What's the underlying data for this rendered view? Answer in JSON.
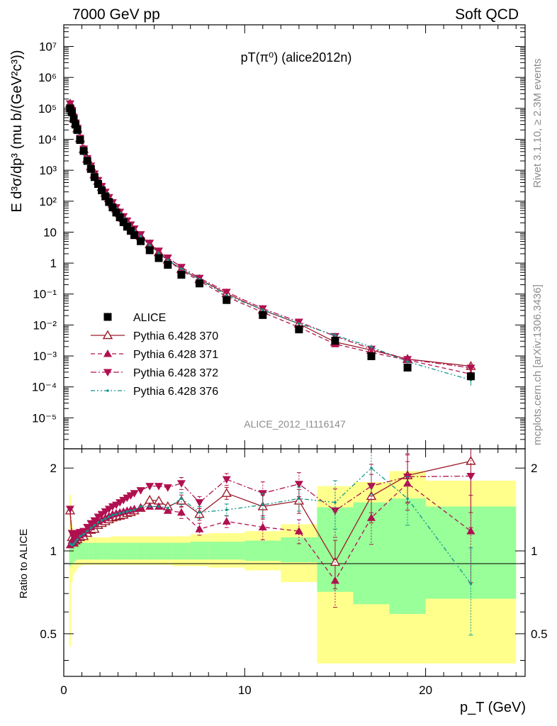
{
  "header": {
    "energy_label": "7000 GeV pp",
    "process_label": "Soft QCD",
    "plot_title": "pT(π⁰) (alice2012n)",
    "watermark": "ALICE_2012_I1116147",
    "rivet_label": "Rivet 3.1.10, ≥ 2.3M events",
    "mcplots_label": "mcplots.cern.ch [arXiv:1306.3436]"
  },
  "chart_data": {
    "type": "scatter",
    "xlabel": "p_T (GeV)",
    "ylabel_main": "E d³σ/dp³ (mu b/(GeV²c³))",
    "ylabel_ratio": "Ratio to ALICE",
    "xlim": [
      0,
      25.5
    ],
    "ylim_main": [
      1e-06,
      50000000.0
    ],
    "ylim_ratio": [
      0.35,
      2.35
    ],
    "log_y_main": true,
    "log_y_ratio": true,
    "x_ticks": [
      "0",
      "10",
      "20"
    ],
    "y_ticks_main": [
      "10⁻⁵",
      "10⁻⁴",
      "10⁻³",
      "10⁻²",
      "10⁻¹",
      "1",
      "10",
      "10²",
      "10³",
      "10⁴",
      "10⁵",
      "10⁶",
      "10⁷"
    ],
    "y_ticks_ratio": [
      "0.5",
      "1",
      "2"
    ],
    "legend_position": "bottom-left",
    "data": {
      "name": "ALICE",
      "x": [
        0.35,
        0.45,
        0.55,
        0.65,
        0.75,
        0.9,
        1.1,
        1.3,
        1.5,
        1.7,
        1.9,
        2.1,
        2.3,
        2.5,
        2.7,
        2.9,
        3.1,
        3.3,
        3.5,
        3.7,
        3.9,
        4.25,
        4.75,
        5.25,
        5.75,
        6.5,
        7.5,
        9.0,
        11.0,
        13.0,
        15.0,
        17.0,
        19.0,
        22.5
      ],
      "y": [
        100000,
        75000,
        45000,
        30000,
        20000,
        9500,
        4200,
        2000,
        1100,
        600,
        360,
        225,
        143,
        94,
        63,
        43,
        30,
        21,
        15,
        11,
        8.0,
        5.1,
        2.6,
        1.45,
        0.88,
        0.42,
        0.22,
        0.064,
        0.021,
        0.0072,
        0.0031,
        0.00098,
        0.00042,
        0.00022
      ]
    },
    "data_band_x": [
      0.3,
      0.4,
      0.5,
      0.6,
      0.7,
      0.8,
      1.0,
      1.2,
      1.4,
      1.6,
      1.8,
      2.0,
      2.2,
      2.4,
      2.6,
      2.8,
      3.0,
      3.2,
      3.4,
      3.6,
      3.8,
      4.0,
      4.5,
      5.0,
      5.5,
      6.0,
      7.0,
      8.0,
      10.0,
      12.0,
      14.0,
      16.0,
      18.0,
      20.0,
      25.0
    ],
    "data_band_stat_lo": [
      0.88,
      0.9,
      0.91,
      0.92,
      0.93,
      0.93,
      0.93,
      0.93,
      0.93,
      0.93,
      0.93,
      0.93,
      0.93,
      0.93,
      0.93,
      0.93,
      0.93,
      0.93,
      0.93,
      0.93,
      0.93,
      0.93,
      0.93,
      0.93,
      0.93,
      0.93,
      0.93,
      0.93,
      0.92,
      0.91,
      0.71,
      0.64,
      0.59,
      0.67
    ],
    "data_band_stat_hi": [
      1.14,
      1.1,
      1.09,
      1.08,
      1.07,
      1.07,
      1.07,
      1.07,
      1.07,
      1.07,
      1.07,
      1.07,
      1.07,
      1.07,
      1.07,
      1.07,
      1.07,
      1.07,
      1.07,
      1.07,
      1.07,
      1.07,
      1.07,
      1.07,
      1.07,
      1.07,
      1.08,
      1.08,
      1.09,
      1.12,
      1.44,
      1.5,
      1.55,
      1.45
    ],
    "data_band_tot_lo": [
      0.45,
      0.77,
      0.82,
      0.84,
      0.86,
      0.88,
      0.89,
      0.89,
      0.89,
      0.89,
      0.89,
      0.89,
      0.89,
      0.89,
      0.89,
      0.89,
      0.89,
      0.89,
      0.89,
      0.89,
      0.89,
      0.89,
      0.89,
      0.89,
      0.89,
      0.88,
      0.88,
      0.87,
      0.85,
      0.77,
      0.39,
      0.39,
      0.39,
      0.39
    ],
    "data_band_tot_hi": [
      1.6,
      1.24,
      1.18,
      1.16,
      1.14,
      1.12,
      1.12,
      1.12,
      1.12,
      1.12,
      1.12,
      1.12,
      1.12,
      1.12,
      1.13,
      1.13,
      1.13,
      1.13,
      1.13,
      1.13,
      1.13,
      1.13,
      1.13,
      1.13,
      1.13,
      1.13,
      1.15,
      1.16,
      1.18,
      1.25,
      1.72,
      1.78,
      1.95,
      1.8
    ],
    "series": [
      {
        "name": "Pythia 6.428 370",
        "color": "#9b1c2b",
        "marker": "triangle-open",
        "line": "solid",
        "ratio": [
          1.4,
          1.12,
          1.07,
          1.09,
          1.1,
          1.12,
          1.13,
          1.16,
          1.19,
          1.2,
          1.24,
          1.26,
          1.28,
          1.3,
          1.32,
          1.33,
          1.34,
          1.35,
          1.37,
          1.38,
          1.4,
          1.43,
          1.53,
          1.52,
          1.45,
          1.52,
          1.36,
          1.62,
          1.45,
          1.52,
          0.91,
          1.58,
          1.88,
          2.12
        ]
      },
      {
        "name": "Pythia 6.428 371",
        "color": "#b01050",
        "marker": "triangle-up",
        "line": "dashed",
        "ratio": [
          1.05,
          1.09,
          1.07,
          1.1,
          1.12,
          1.14,
          1.16,
          1.19,
          1.22,
          1.25,
          1.28,
          1.3,
          1.32,
          1.34,
          1.36,
          1.37,
          1.38,
          1.39,
          1.4,
          1.41,
          1.42,
          1.43,
          1.45,
          1.45,
          1.4,
          1.38,
          1.2,
          1.28,
          1.22,
          1.18,
          0.78,
          1.32,
          1.76,
          1.18
        ]
      },
      {
        "name": "Pythia 6.428 372",
        "color": "#b01050",
        "marker": "triangle-down",
        "line": "dashdot",
        "ratio": [
          1.42,
          1.16,
          1.12,
          1.14,
          1.16,
          1.17,
          1.18,
          1.22,
          1.26,
          1.29,
          1.33,
          1.36,
          1.39,
          1.42,
          1.45,
          1.47,
          1.5,
          1.53,
          1.56,
          1.59,
          1.62,
          1.66,
          1.72,
          1.72,
          1.7,
          1.76,
          1.5,
          1.82,
          1.62,
          1.75,
          1.4,
          1.72,
          1.86,
          1.87
        ]
      },
      {
        "name": "Pythia 6.428 376",
        "color": "#12958a",
        "marker": "dot",
        "line": "dashdotdot",
        "ratio": [
          1.06,
          1.05,
          1.06,
          1.08,
          1.1,
          1.13,
          1.15,
          1.18,
          1.21,
          1.24,
          1.27,
          1.29,
          1.31,
          1.33,
          1.35,
          1.36,
          1.37,
          1.38,
          1.39,
          1.4,
          1.41,
          1.45,
          1.45,
          1.45,
          1.43,
          1.55,
          1.38,
          1.41,
          1.47,
          1.55,
          1.5,
          2.0,
          1.55,
          0.76
        ]
      }
    ]
  }
}
